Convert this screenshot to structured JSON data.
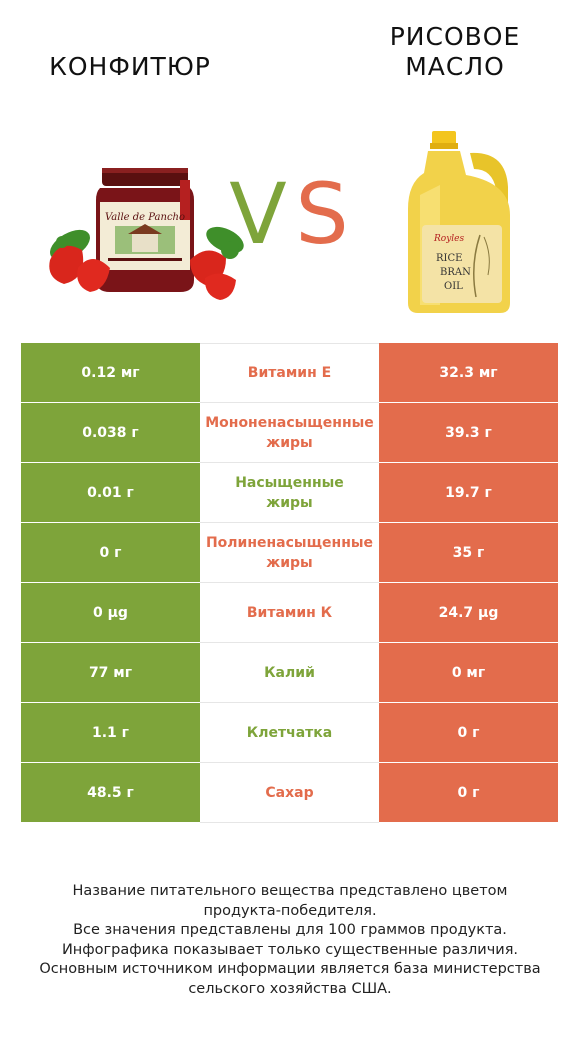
{
  "header": {
    "left_title": "КОНФИТЮР",
    "right_title_line1": "РИСОВОЕ",
    "right_title_line2": "МАСЛО",
    "vs_v": "V",
    "vs_s": "S"
  },
  "images": {
    "left_icon": "jam-jar-with-strawberries",
    "right_icon": "rice-bran-oil-bottle",
    "left_label_text": "Valle de Pancho",
    "right_label_line1": "RICE",
    "right_label_line2": "BRAN",
    "right_label_line3": "OIL"
  },
  "colors": {
    "winner_left": "#7ea43a",
    "winner_right": "#e36c4c"
  },
  "rows": [
    {
      "left": "0.12 мг",
      "nutrient": "Витамин E",
      "right": "32.3 мг",
      "winner": "right"
    },
    {
      "left": "0.038 г",
      "nutrient_l1": "Мононенасыщенные",
      "nutrient_l2": "жиры",
      "right": "39.3 г",
      "winner": "right"
    },
    {
      "left": "0.01 г",
      "nutrient_l1": "Насыщенные",
      "nutrient_l2": "жиры",
      "right": "19.7 г",
      "winner": "left"
    },
    {
      "left": "0 г",
      "nutrient_l1": "Полиненасыщенные",
      "nutrient_l2": "жиры",
      "right": "35 г",
      "winner": "right"
    },
    {
      "left": "0 µg",
      "nutrient": "Витамин К",
      "right": "24.7 µg",
      "winner": "right"
    },
    {
      "left": "77 мг",
      "nutrient": "Калий",
      "right": "0 мг",
      "winner": "left"
    },
    {
      "left": "1.1 г",
      "nutrient": "Клетчатка",
      "right": "0 г",
      "winner": "left"
    },
    {
      "left": "48.5 г",
      "nutrient": "Сахар",
      "right": "0 г",
      "winner": "right"
    }
  ],
  "footer": {
    "line1": "Название питательного вещества представлено цветом",
    "line2": "продукта-победителя.",
    "line3": "Все значения представлены для 100 граммов продукта.",
    "line4": "Инфографика показывает только существенные различия.",
    "line5": "Основным источником информации является база министерства",
    "line6": "сельского хозяйства США."
  }
}
